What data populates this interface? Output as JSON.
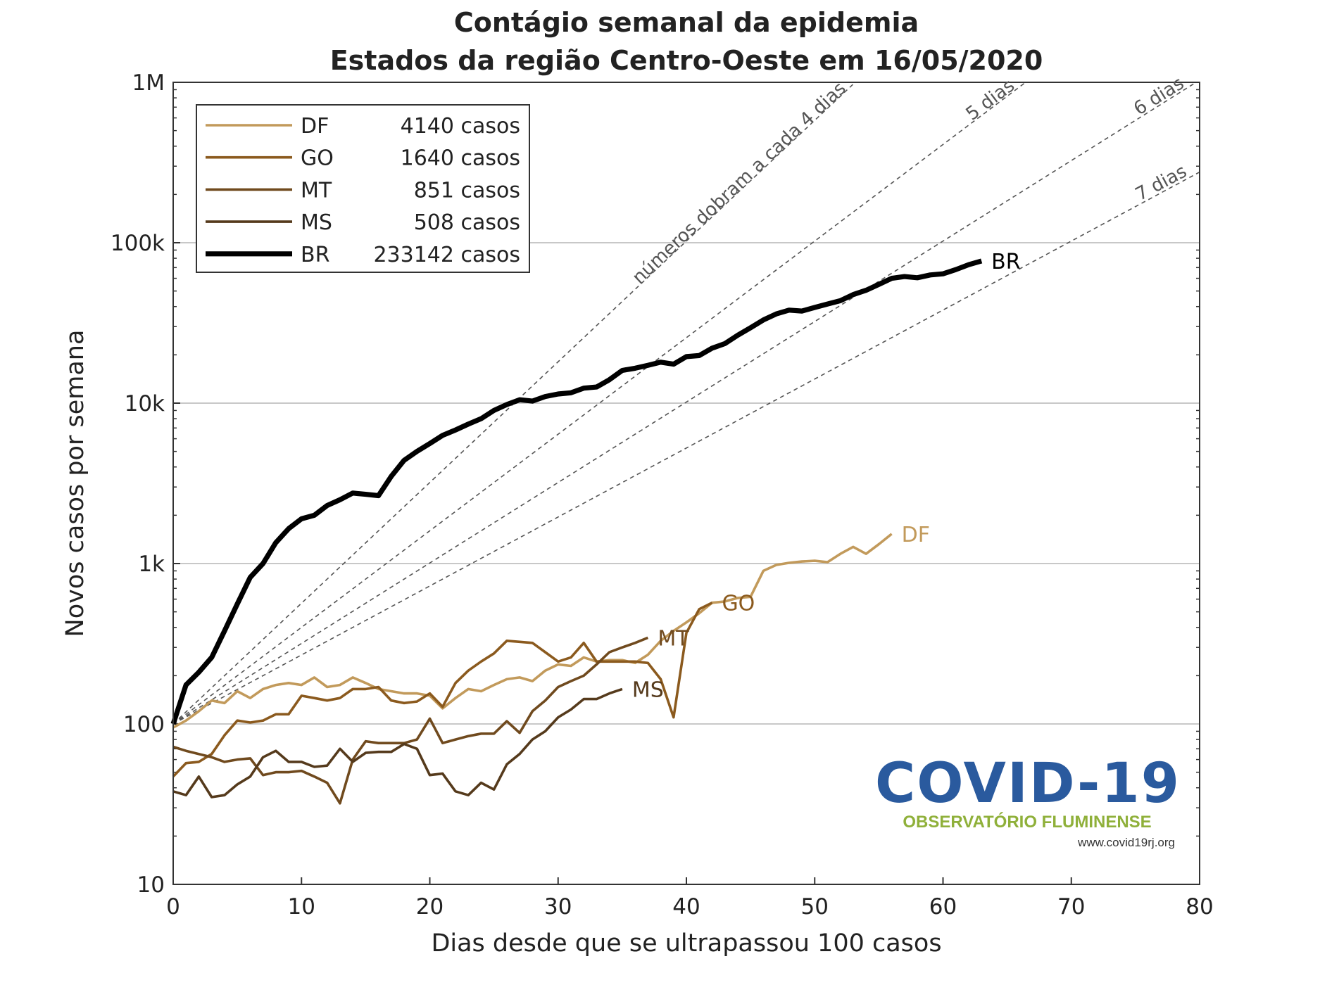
{
  "chart_data": {
    "type": "line",
    "title": "Contágio semanal da epidemia",
    "subtitle": "Estados da região Centro-Oeste em 16/05/2020",
    "x_label": "Dias desde que se ultrapassou 100 casos",
    "y_label": "Novos casos por semana",
    "log_y": true,
    "grid": true,
    "legend": "upper left",
    "xlim": [
      0,
      80
    ],
    "xticks": [
      0,
      10,
      20,
      30,
      40,
      50,
      60,
      70,
      80
    ],
    "ylim": [
      10,
      1000000
    ],
    "yticks": [
      10,
      100,
      {
        "value": 1000,
        "label": "1k"
      },
      {
        "value": 10000,
        "label": "10k"
      },
      {
        "value": 100000,
        "label": "100k"
      },
      {
        "value": 1000000,
        "label": "1M"
      }
    ],
    "x": [
      0,
      1,
      2,
      3,
      4,
      5,
      6,
      7,
      8,
      9,
      10,
      11,
      12,
      13,
      14,
      15,
      16,
      17,
      18,
      19,
      20,
      21,
      22,
      23,
      24,
      25,
      26,
      27,
      28,
      29,
      30,
      31,
      32,
      33,
      34,
      35,
      36,
      37,
      38,
      39,
      40,
      41,
      42,
      43,
      44,
      45,
      46,
      47,
      48,
      49,
      50,
      51,
      52,
      53,
      54,
      55,
      56,
      57,
      58,
      59,
      60,
      61,
      62,
      63
    ],
    "series": [
      {
        "name": "DF",
        "total_label": "4140 casos",
        "color": "#c29a5b",
        "width": 3,
        "values": [
          95,
          105,
          120,
          140,
          135,
          160,
          145,
          165,
          175,
          180,
          175,
          195,
          170,
          175,
          195,
          180,
          165,
          160,
          155,
          155,
          150,
          125,
          145,
          165,
          160,
          175,
          190,
          195,
          185,
          215,
          235,
          230,
          260,
          245,
          250,
          250,
          240,
          270,
          330,
          380,
          430,
          490,
          570,
          580,
          610,
          620,
          900,
          980,
          1010,
          1030,
          1040,
          1020,
          1150,
          1270,
          1150,
          1320,
          1530,
          null,
          null,
          null,
          null,
          null,
          null,
          null
        ]
      },
      {
        "name": "GO",
        "total_label": "1640 casos",
        "color": "#8b5a1e",
        "width": 3,
        "values": [
          47,
          57,
          58,
          65,
          85,
          105,
          102,
          105,
          115,
          115,
          150,
          145,
          140,
          145,
          165,
          165,
          170,
          140,
          135,
          138,
          155,
          128,
          180,
          215,
          245,
          275,
          330,
          325,
          320,
          280,
          245,
          260,
          320,
          245,
          245,
          245,
          245,
          240,
          190,
          110,
          370,
          520,
          570,
          null,
          null,
          null,
          null,
          null,
          null,
          null,
          null,
          null,
          null,
          null,
          null,
          null,
          null,
          null,
          null,
          null,
          null,
          null,
          null,
          null
        ]
      },
      {
        "name": "MT",
        "total_label": "851 casos",
        "color": "#704a1e",
        "width": 3,
        "values": [
          72,
          68,
          65,
          62,
          58,
          60,
          61,
          48,
          50,
          50,
          51,
          47,
          43,
          32,
          60,
          78,
          76,
          76,
          76,
          80,
          108,
          76,
          80,
          84,
          87,
          87,
          104,
          88,
          120,
          140,
          170,
          185,
          200,
          235,
          280,
          300,
          320,
          345,
          null,
          null,
          null,
          null,
          null,
          null,
          null,
          null,
          null,
          null,
          null,
          null,
          null,
          null,
          null,
          null,
          null,
          null,
          null,
          null,
          null,
          null,
          null,
          null,
          null,
          null
        ]
      },
      {
        "name": "MS",
        "total_label": "508 casos",
        "color": "#553a1c",
        "width": 3,
        "values": [
          38,
          36,
          47,
          35,
          36,
          42,
          47,
          62,
          68,
          58,
          58,
          54,
          55,
          70,
          58,
          66,
          67,
          67,
          75,
          70,
          48,
          49,
          38,
          36,
          43,
          39,
          56,
          65,
          80,
          90,
          110,
          123,
          143,
          143,
          155,
          165,
          null,
          null,
          null,
          null,
          null,
          null,
          null,
          null,
          null,
          null,
          null,
          null,
          null,
          null,
          null,
          null,
          null,
          null,
          null,
          null,
          null,
          null,
          null,
          null,
          null,
          null,
          null,
          null
        ]
      },
      {
        "name": "BR",
        "total_label": "233142 casos",
        "color": "#000000",
        "width": 6,
        "values": [
          100,
          175,
          210,
          260,
          380,
          560,
          820,
          1000,
          1350,
          1650,
          1900,
          2000,
          2300,
          2500,
          2750,
          2700,
          2650,
          3500,
          4400,
          5000,
          5600,
          6300,
          6800,
          7400,
          8000,
          9000,
          9800,
          10500,
          10300,
          11000,
          11400,
          11600,
          12400,
          12600,
          14000,
          16000,
          16500,
          17200,
          18000,
          17500,
          19500,
          19800,
          22000,
          23500,
          26500,
          29500,
          33000,
          36000,
          38000,
          37500,
          39500,
          41500,
          43500,
          47500,
          50500,
          55000,
          60000,
          61500,
          60500,
          63000,
          64000,
          68000,
          73000,
          77000
        ]
      }
    ],
    "doubling_lines": [
      {
        "days": 4,
        "label": "números dobram a cada 4 dias"
      },
      {
        "days": 5,
        "label": "5 dias"
      },
      {
        "days": 6,
        "label": "6 dias"
      },
      {
        "days": 7,
        "label": "7 dias"
      }
    ],
    "doubling_start": 100,
    "logo": {
      "title": "COVID-19",
      "subtitle": "OBSERVATÓRIO FLUMINENSE",
      "url": "www.covid19rj.org"
    }
  }
}
